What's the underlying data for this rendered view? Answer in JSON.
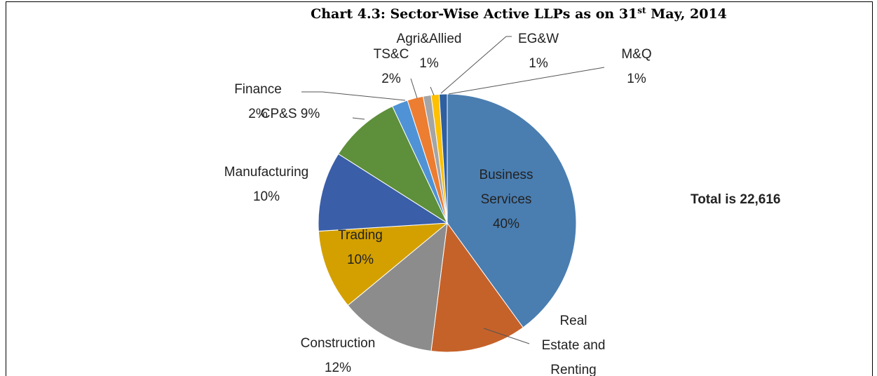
{
  "chart_data": {
    "type": "pie",
    "title": [
      "Chart 4.3: Sector-Wise Active LLPs as on 31",
      "st",
      " May, 2014"
    ],
    "annotation": "Total is 22,616",
    "categories": [
      "Business Services",
      "Real Estate and Renting",
      "Construction",
      "Trading",
      "Manufacturing",
      "CP&S",
      "Finance",
      "TS&C",
      "Agri&Allied",
      "EG&W",
      "M&Q"
    ],
    "values": [
      40,
      12,
      12,
      10,
      10,
      9,
      2,
      2,
      1,
      1,
      1
    ],
    "value_labels": [
      "40%",
      null,
      "12%",
      "10%",
      "10%",
      "9%",
      "2%",
      "2%",
      "1%",
      "1%",
      "1%"
    ],
    "colors": [
      "#4a7eb1",
      "#c5622a",
      "#8c8c8c",
      "#d4a000",
      "#3a5ea8",
      "#5e8f3a",
      "#4f93d6",
      "#ec7d31",
      "#a5a5a5",
      "#ffc000",
      "#2e5fa0"
    ]
  }
}
